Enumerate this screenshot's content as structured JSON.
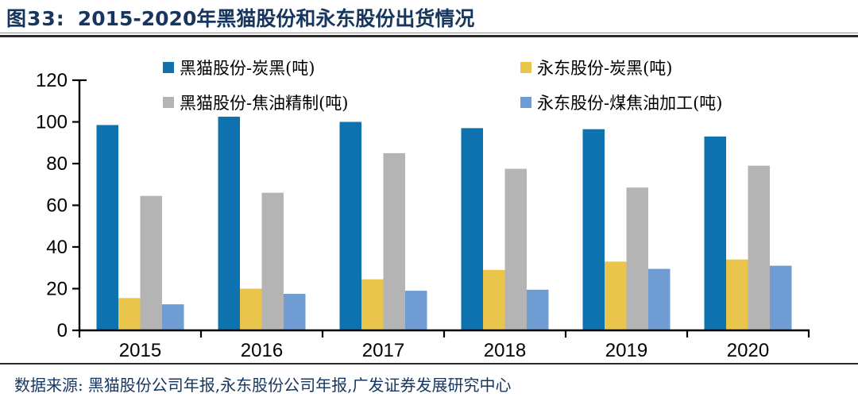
{
  "colors": {
    "navy": "#17365D",
    "axis": "#000000"
  },
  "title": {
    "prefix": "图33:",
    "text": "2015-2020年黑猫股份和永东股份出货情况"
  },
  "source": {
    "label": "数据来源:",
    "text": "黑猫股份公司年报,永东股份公司年报,广发证券发展研究中心"
  },
  "chart_data": {
    "type": "bar",
    "title": "2015-2020年黑猫股份和永东股份出货情况",
    "categories": [
      "2015",
      "2016",
      "2017",
      "2018",
      "2019",
      "2020"
    ],
    "series": [
      {
        "name": "黑猫股份-炭黑(吨)",
        "color": "#0E72AE",
        "values": [
          98.5,
          102.5,
          100,
          97,
          96.5,
          93
        ]
      },
      {
        "name": "永东股份-炭黑(吨)",
        "color": "#E9C64B",
        "values": [
          15.5,
          20,
          24.5,
          29,
          33,
          34
        ]
      },
      {
        "name": "黑猫股份-焦油精制(吨)",
        "color": "#B4B4B4",
        "values": [
          64.5,
          66,
          85,
          77.5,
          68.5,
          79
        ]
      },
      {
        "name": "永东股份-煤焦油加工(吨)",
        "color": "#6F9CD2",
        "values": [
          12.5,
          17.5,
          19,
          19.5,
          29.5,
          31
        ]
      }
    ],
    "xlabel": "",
    "ylabel": "",
    "ylim": [
      0,
      120
    ],
    "yticks": [
      0,
      20,
      40,
      60,
      80,
      100,
      120
    ],
    "legend_position": "top",
    "grid": false
  }
}
